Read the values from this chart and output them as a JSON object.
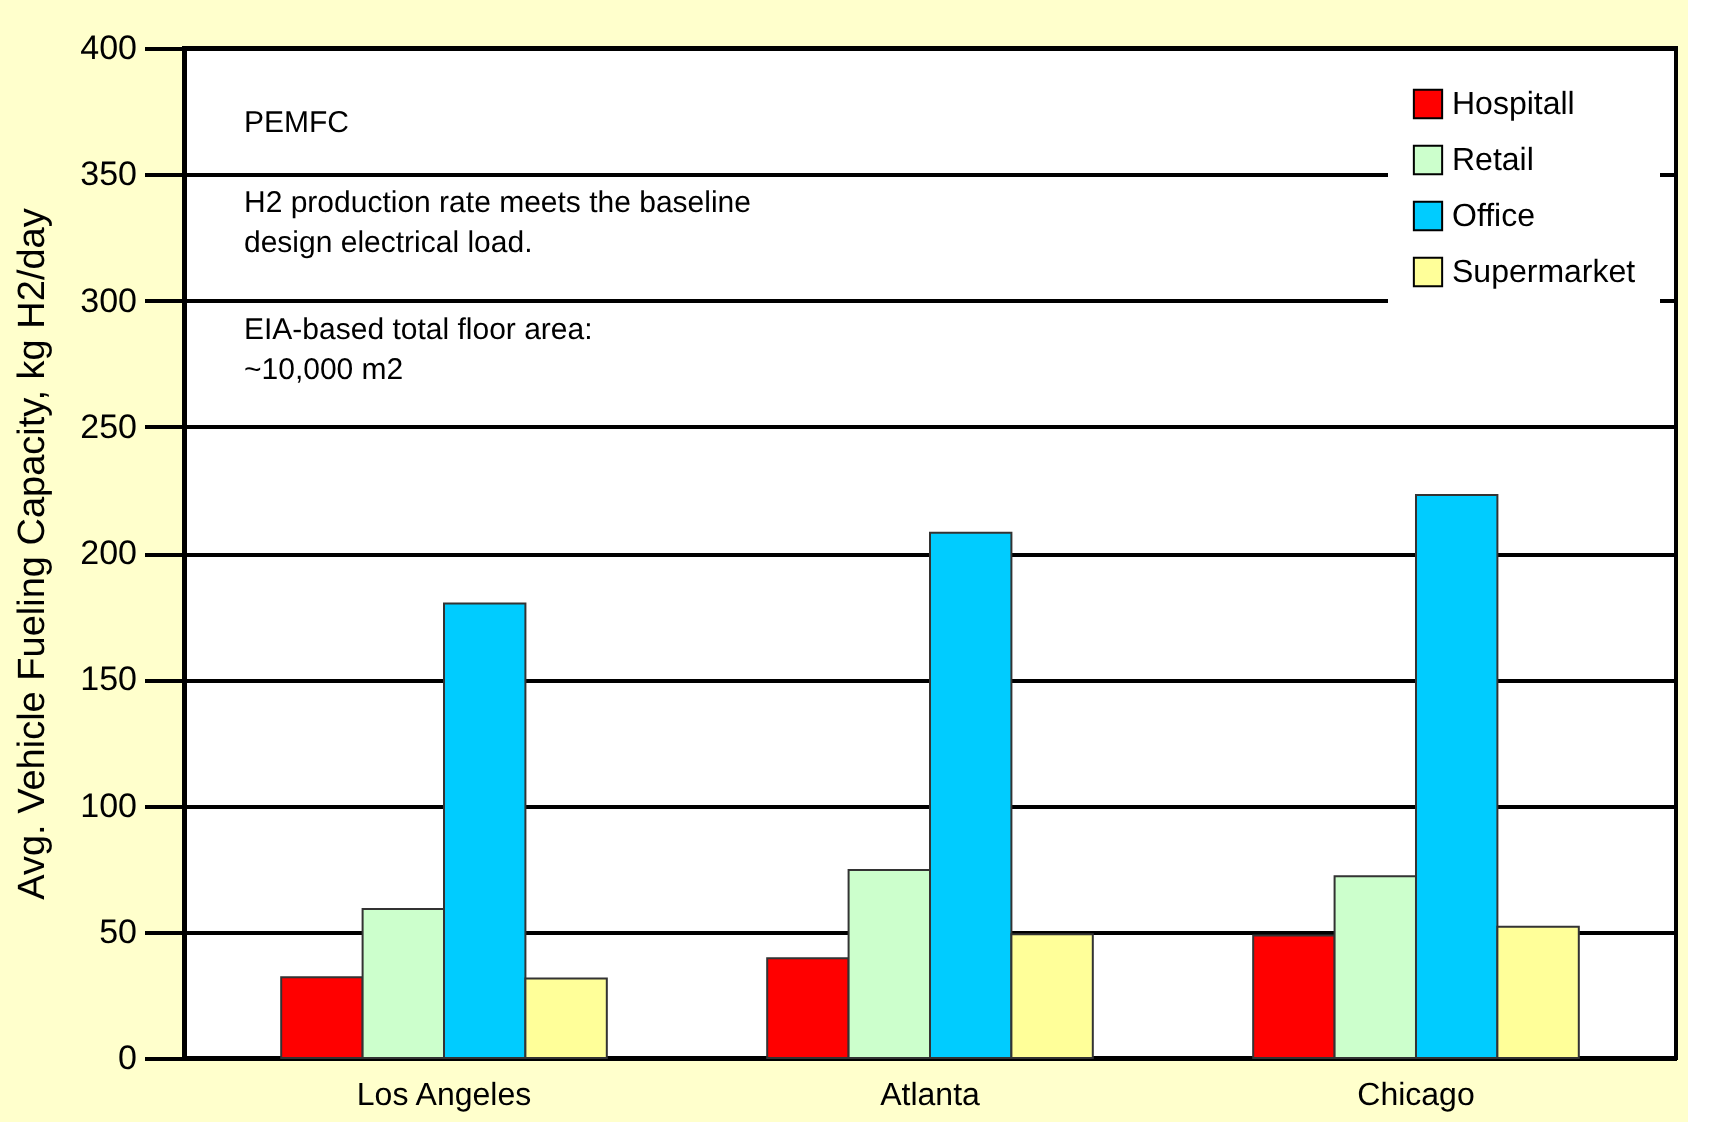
{
  "chart_data": {
    "type": "bar",
    "ylabel": "Avg. Vehicle Fueling Capacity, kg H2/day",
    "categories": [
      "Los Angeles",
      "Atlanta",
      "Chicago"
    ],
    "series": [
      {
        "name": "Hospitall",
        "color": "#ff0000",
        "values": [
          32,
          39.5,
          48.5
        ]
      },
      {
        "name": "Retail",
        "color": "#ccffcc",
        "values": [
          59,
          74.5,
          72
        ]
      },
      {
        "name": "Office",
        "color": "#00ccff",
        "values": [
          180,
          208,
          223
        ]
      },
      {
        "name": "Supermarket",
        "color": "#ffff99",
        "values": [
          31.5,
          49,
          52
        ]
      }
    ],
    "ylim": [
      0,
      400
    ],
    "yticks": [
      0,
      50,
      100,
      150,
      200,
      250,
      300,
      350,
      400
    ],
    "grid": "y",
    "legend": "top right",
    "annotations": [
      "PEMFC",
      "H2 production rate meets the baseline\ndesign electrical load.",
      "EIA-based total floor area:\n ~10,000 m2"
    ]
  }
}
